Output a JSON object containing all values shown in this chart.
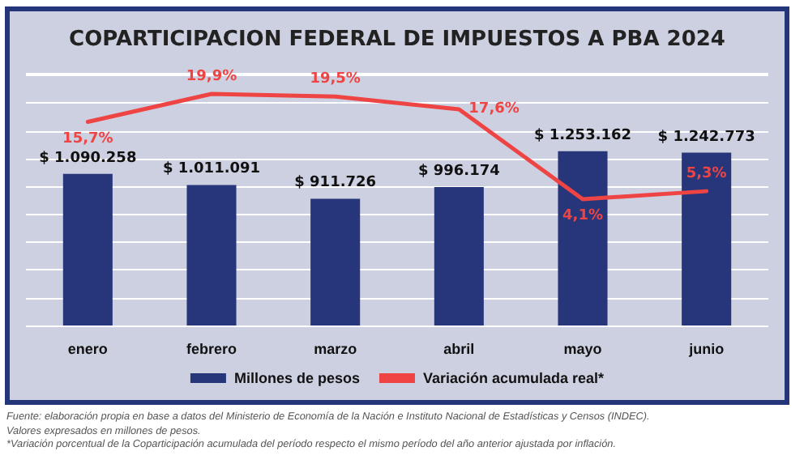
{
  "chart_data": {
    "type": "bar",
    "title": "COPARTICIPACION FEDERAL DE IMPUESTOS A PBA 2024",
    "categories": [
      "enero",
      "febrero",
      "marzo",
      "abril",
      "mayo",
      "junio"
    ],
    "series": [
      {
        "name": "Millones de pesos",
        "color": "#27367a",
        "values": [
          1090258,
          1011091,
          911726,
          996174,
          1253162,
          1242773
        ],
        "value_labels": [
          "$ 1.090.258",
          "$ 1.011.091",
          "$ 911.726",
          "$ 996.174",
          "$ 1.253.162",
          "$ 1.242.773"
        ]
      },
      {
        "name": "Variación acumulada real*",
        "type": "line",
        "axis": "y2",
        "color": "#ee4444",
        "values": [
          15.7,
          19.9,
          19.5,
          17.6,
          4.1,
          5.3
        ],
        "value_labels": [
          "15,7%",
          "19,9%",
          "19,5%",
          "17,6%",
          "4,1%",
          "5,3%"
        ]
      }
    ],
    "tick_labels": "x",
    "grid": "y",
    "legend": "bottom",
    "marker": "none",
    "line_style": "solid",
    "annotations": [
      "Fuente: elaboración propia en base a datos del Ministerio de Economía de la Nación e Instituto Nacional de Estadísticas y Censos (INDEC).",
      "Valores expresados en millones de pesos.",
      "*Variación porcentual de la Coparticipación acumulada del período respecto el mismo período del año anterior ajustada por inflación."
    ]
  }
}
